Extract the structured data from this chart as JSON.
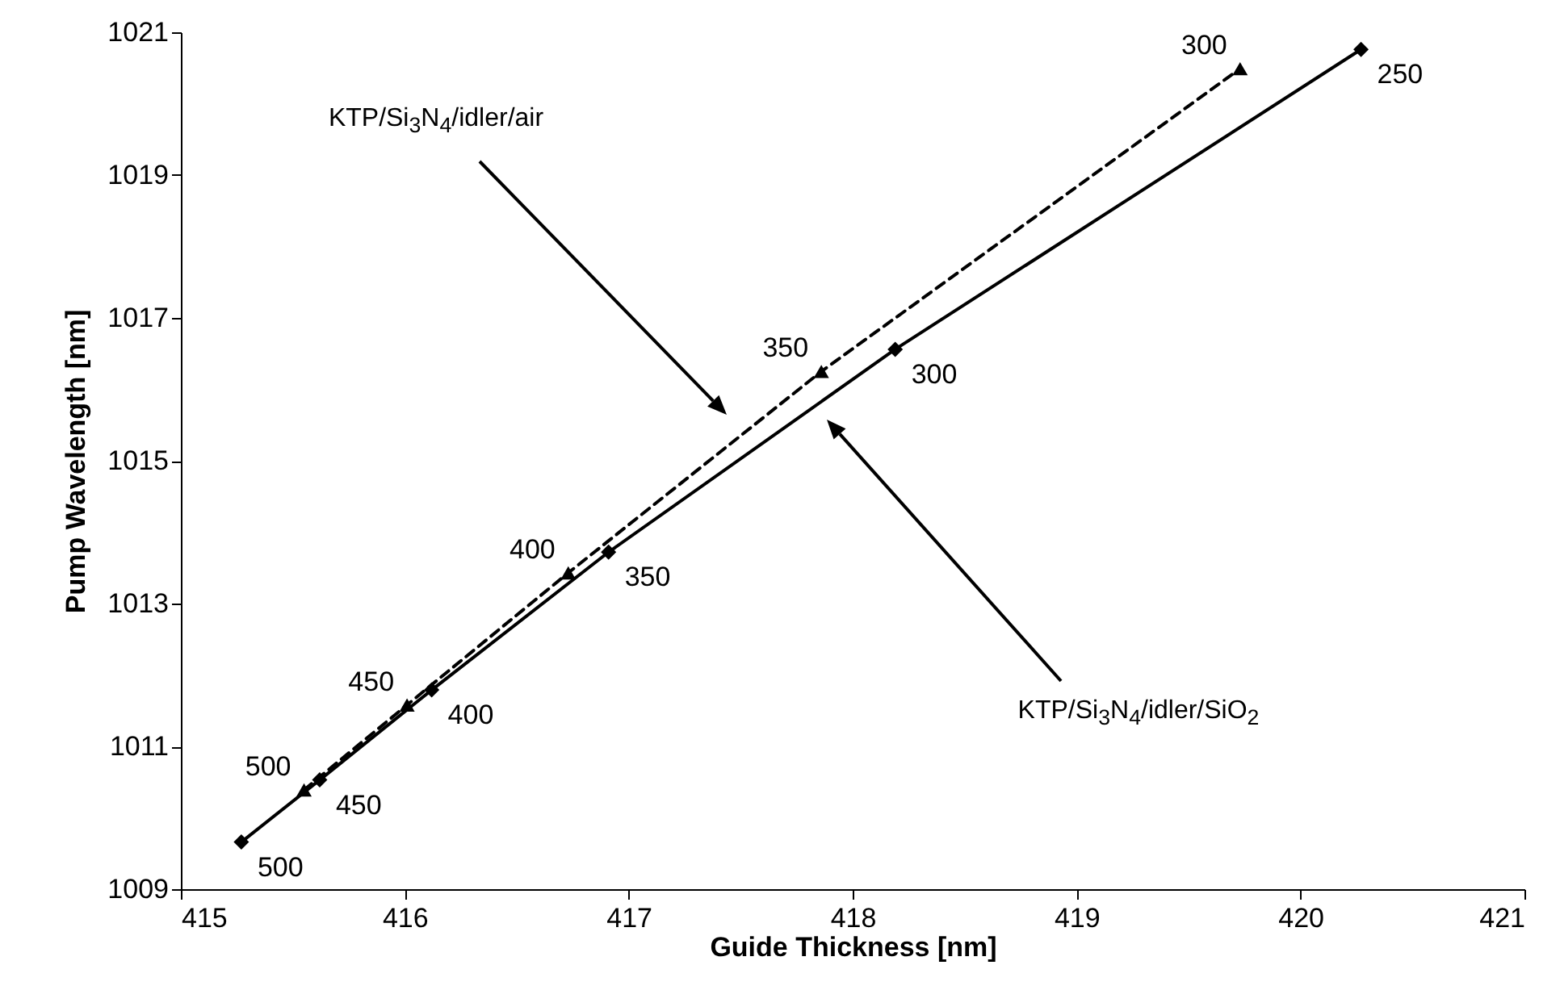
{
  "chart_data": {
    "type": "line",
    "xlabel": "Guide Thickness [nm]",
    "ylabel": "Pump Wavelength [nm]",
    "xlim": [
      415,
      421
    ],
    "xticks": [
      415,
      416,
      417,
      418,
      419,
      420,
      421
    ],
    "ylim": [
      1009,
      1021
    ],
    "yticks": [
      1009,
      1011,
      1013,
      1015,
      1017,
      1019,
      1021
    ],
    "grid": false,
    "series": [
      {
        "color": "#000000",
        "marker": "diamond",
        "line_style": "solid",
        "x": [
          415.27,
          415.62,
          416.12,
          416.91,
          418.19,
          420.27
        ],
        "values": [
          1009.66,
          1010.53,
          1011.79,
          1013.72,
          1016.56,
          1020.76
        ]
      },
      {
        "color": "#000000",
        "marker": "triangle",
        "line_style": "dashed",
        "x": [
          415.55,
          416.01,
          416.73,
          417.86,
          419.73
        ],
        "values": [
          1010.39,
          1011.58,
          1013.43,
          1016.25,
          1020.49
        ]
      }
    ],
    "annotations": [
      "KTP/Si$_{3}$N$_{4}$/idler/air",
      "KTP/Si$_{3}$N$_{4}$/idler/SiO$_{2}$",
      {
        "text": "500",
        "x": 415.27,
        "y": 1009.66
      },
      {
        "text": "450",
        "x": 415.62,
        "y": 1010.53
      },
      {
        "text": "400",
        "x": 416.12,
        "y": 1011.79
      },
      {
        "text": "350",
        "x": 416.91,
        "y": 1013.72
      },
      {
        "text": "300",
        "x": 418.19,
        "y": 1016.56
      },
      {
        "text": "250",
        "x": 420.27,
        "y": 1020.76
      },
      {
        "text": "500",
        "x": 415.55,
        "y": 1010.39
      },
      {
        "text": "450",
        "x": 416.01,
        "y": 1011.58
      },
      {
        "text": "400",
        "x": 416.73,
        "y": 1013.43
      },
      {
        "text": "350",
        "x": 417.86,
        "y": 1016.25
      },
      {
        "text": "300",
        "x": 419.73,
        "y": 1020.49
      }
    ]
  }
}
